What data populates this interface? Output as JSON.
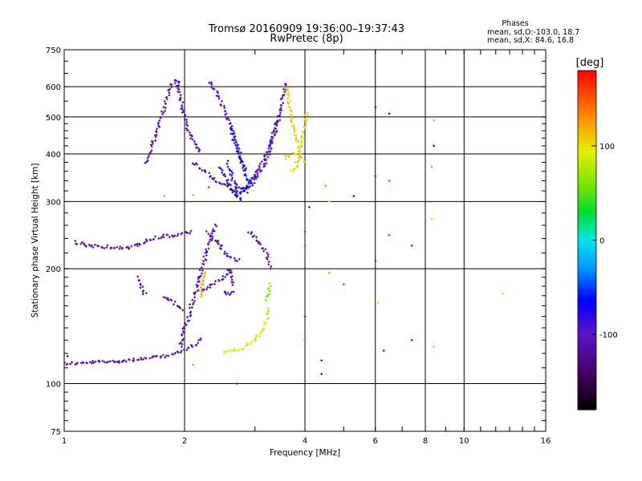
{
  "chart_data": {
    "type": "scatter",
    "title": "Tromsø 20160909 19:36:00–19:37:43",
    "subtitle": "RwPretec (8p)",
    "xlabel": "Frequency [MHz]",
    "ylabel": "Stationary phase Virtual Height [km]",
    "x_scale": "log",
    "y_scale": "log",
    "xlim": [
      1,
      16
    ],
    "ylim": [
      75,
      750
    ],
    "x_ticks": [
      1,
      2,
      4,
      6,
      8,
      10,
      16
    ],
    "x_tick_labels": [
      "1",
      "2",
      "4",
      "6",
      "8",
      "10",
      "16"
    ],
    "y_ticks": [
      75,
      100,
      200,
      300,
      400,
      500,
      600,
      750
    ],
    "y_tick_labels": [
      "75",
      "100",
      "200",
      "300",
      "400",
      "500",
      "600",
      "750"
    ],
    "grid": true,
    "legend": {
      "position": "top-right",
      "title": "Phases",
      "lines": [
        "mean, sd,O:-103.0, 18.7",
        "mean, sd,X: 84.6, 16.8"
      ]
    },
    "colorbar": {
      "label": "[deg]",
      "range": [
        -180,
        180
      ],
      "ticks": [
        100,
        0,
        -100
      ],
      "tick_labels": [
        "100",
        "0",
        "-100"
      ],
      "colormap": "rainbow"
    },
    "point_color_value": "phase [deg]",
    "traces": [
      {
        "x": [
          1.0,
          1.06,
          1.12,
          1.2,
          1.3,
          1.42,
          1.55,
          1.7,
          1.85,
          1.95,
          2.05,
          2.15,
          2.22
        ],
        "y": [
          113,
          113,
          113,
          114,
          114,
          115,
          116,
          117,
          119,
          121,
          124,
          128,
          132
        ],
        "phase": -112
      },
      {
        "x": [
          1.95,
          2.0,
          2.05,
          2.08,
          2.12,
          2.16,
          2.2,
          2.24,
          2.28,
          2.32,
          2.36,
          2.4
        ],
        "y": [
          125,
          140,
          150,
          160,
          170,
          180,
          195,
          210,
          225,
          240,
          250,
          262
        ],
        "phase": -112
      },
      {
        "x": [
          2.28,
          2.36,
          2.44,
          2.5,
          2.58,
          2.65,
          2.75
        ],
        "y": [
          250,
          240,
          232,
          222,
          216,
          212,
          210
        ],
        "phase": -112
      },
      {
        "x": [
          1.06,
          1.15,
          1.3,
          1.45,
          1.6,
          1.75,
          1.9,
          2.0,
          2.1
        ],
        "y": [
          235,
          230,
          228,
          226,
          236,
          243,
          244,
          248,
          250
        ],
        "phase": -112
      },
      {
        "x": [
          1.6,
          1.65,
          1.7,
          1.75,
          1.8,
          1.85,
          1.9,
          1.95
        ],
        "y": [
          380,
          410,
          450,
          500,
          550,
          600,
          630,
          600
        ],
        "phase": -112
      },
      {
        "x": [
          1.9,
          1.95,
          2.0,
          2.05,
          2.1,
          2.2
        ],
        "y": [
          620,
          560,
          500,
          460,
          430,
          400
        ],
        "phase": -112
      },
      {
        "x": [
          2.1,
          2.25,
          2.4,
          2.55,
          2.7,
          2.85
        ],
        "y": [
          380,
          360,
          340,
          330,
          320,
          318
        ],
        "phase": -108
      },
      {
        "x": [
          2.85,
          3.0,
          3.15,
          3.3,
          3.45
        ],
        "y": [
          318,
          340,
          370,
          420,
          500
        ],
        "phase": -108
      },
      {
        "x": [
          2.7,
          2.85,
          3.0,
          3.2,
          3.35,
          3.5,
          3.6
        ],
        "y": [
          310,
          330,
          350,
          400,
          460,
          540,
          620
        ],
        "phase": -108
      },
      {
        "x": [
          2.3,
          2.45,
          2.55,
          2.65,
          2.75,
          2.85
        ],
        "y": [
          620,
          560,
          500,
          450,
          400,
          360
        ],
        "phase": -100
      },
      {
        "x": [
          2.55,
          2.6,
          2.65,
          2.7,
          2.8,
          2.9,
          3.0
        ],
        "y": [
          380,
          360,
          340,
          325,
          320,
          330,
          350
        ],
        "phase": -70
      },
      {
        "x": [
          2.45,
          2.55,
          2.6,
          2.7,
          2.8
        ],
        "y": [
          370,
          345,
          325,
          310,
          300
        ],
        "phase": -80
      },
      {
        "x": [
          2.6,
          2.65,
          2.7,
          2.75,
          2.8,
          2.85,
          2.9,
          2.95
        ],
        "y": [
          470,
          440,
          410,
          390,
          370,
          350,
          340,
          330
        ],
        "phase": -60
      },
      {
        "x": [
          3.7,
          3.8,
          3.85,
          3.9,
          3.95,
          4.0,
          4.05
        ],
        "y": [
          360,
          370,
          390,
          410,
          440,
          480,
          520
        ],
        "phase": 105
      },
      {
        "x": [
          3.6,
          3.7,
          3.8,
          3.9,
          4.0
        ],
        "y": [
          600,
          500,
          440,
          400,
          375
        ],
        "phase": 105
      },
      {
        "x": [
          3.55,
          3.65,
          3.75,
          3.85
        ],
        "y": [
          390,
          395,
          400,
          405
        ],
        "phase": 100
      },
      {
        "x": [
          2.5,
          2.65,
          2.8,
          2.95,
          3.05,
          3.15,
          3.22,
          3.28
        ],
        "y": [
          121,
          122,
          124,
          128,
          133,
          140,
          150,
          160
        ],
        "phase": 95
      },
      {
        "x": [
          3.2,
          3.25,
          3.28
        ],
        "y": [
          165,
          175,
          185
        ],
        "phase": 60
      },
      {
        "x": [
          2.9,
          3.0,
          3.1,
          3.2,
          3.28
        ],
        "y": [
          250,
          240,
          230,
          220,
          200
        ],
        "phase": -112
      },
      {
        "x": [
          1.52,
          1.55,
          1.57,
          1.6
        ],
        "y": [
          190,
          182,
          176,
          170
        ],
        "phase": -112
      },
      {
        "x": [
          1.78,
          1.85,
          1.92,
          1.98
        ],
        "y": [
          170,
          165,
          160,
          155
        ],
        "phase": -112
      },
      {
        "x": [
          2.2,
          2.3,
          2.4,
          2.5,
          2.6,
          2.65
        ],
        "y": [
          175,
          180,
          185,
          190,
          200,
          180
        ],
        "phase": -112
      },
      {
        "x": [
          2.5,
          2.55,
          2.6,
          2.65
        ],
        "y": [
          175,
          172,
          172,
          173
        ],
        "phase": -115
      },
      {
        "x": [
          2.2,
          2.22,
          2.24,
          2.26
        ],
        "y": [
          170,
          182,
          190,
          198
        ],
        "phase": 120
      }
    ],
    "scatter_points": [
      {
        "x": 1.02,
        "y": 118,
        "phase": -112
      },
      {
        "x": 2.1,
        "y": 312,
        "phase": 120
      },
      {
        "x": 1.78,
        "y": 310,
        "phase": 125
      },
      {
        "x": 2.3,
        "y": 327,
        "phase": 170
      },
      {
        "x": 3.5,
        "y": 520,
        "phase": 170
      },
      {
        "x": 4.1,
        "y": 290,
        "phase": -90
      },
      {
        "x": 4.5,
        "y": 330,
        "phase": 130
      },
      {
        "x": 4.6,
        "y": 300,
        "phase": 100
      },
      {
        "x": 4.0,
        "y": 250,
        "phase": -100
      },
      {
        "x": 4.0,
        "y": 230,
        "phase": 170
      },
      {
        "x": 4.6,
        "y": 195,
        "phase": 125
      },
      {
        "x": 5.0,
        "y": 182,
        "phase": 165
      },
      {
        "x": 4.0,
        "y": 150,
        "phase": -70
      },
      {
        "x": 4.0,
        "y": 130,
        "phase": 160
      },
      {
        "x": 4.4,
        "y": 115,
        "phase": -100
      },
      {
        "x": 4.4,
        "y": 106,
        "phase": -112
      },
      {
        "x": 5.3,
        "y": 310,
        "phase": -70
      },
      {
        "x": 6.0,
        "y": 530,
        "phase": -80
      },
      {
        "x": 6.0,
        "y": 350,
        "phase": -112
      },
      {
        "x": 6.0,
        "y": 210,
        "phase": -100
      },
      {
        "x": 6.1,
        "y": 163,
        "phase": 100
      },
      {
        "x": 6.5,
        "y": 510,
        "phase": -60
      },
      {
        "x": 6.5,
        "y": 340,
        "phase": 165
      },
      {
        "x": 6.5,
        "y": 245,
        "phase": 170
      },
      {
        "x": 6.3,
        "y": 122,
        "phase": -90
      },
      {
        "x": 7.4,
        "y": 230,
        "phase": -112
      },
      {
        "x": 7.4,
        "y": 130,
        "phase": -112
      },
      {
        "x": 8.4,
        "y": 490,
        "phase": 120
      },
      {
        "x": 8.4,
        "y": 420,
        "phase": -70
      },
      {
        "x": 8.3,
        "y": 370,
        "phase": 130
      },
      {
        "x": 8.3,
        "y": 270,
        "phase": 100
      },
      {
        "x": 8.4,
        "y": 125,
        "phase": 110
      },
      {
        "x": 12.5,
        "y": 172,
        "phase": 100
      },
      {
        "x": 2.7,
        "y": 100,
        "phase": -112
      },
      {
        "x": 2.1,
        "y": 112,
        "phase": 130
      }
    ]
  }
}
